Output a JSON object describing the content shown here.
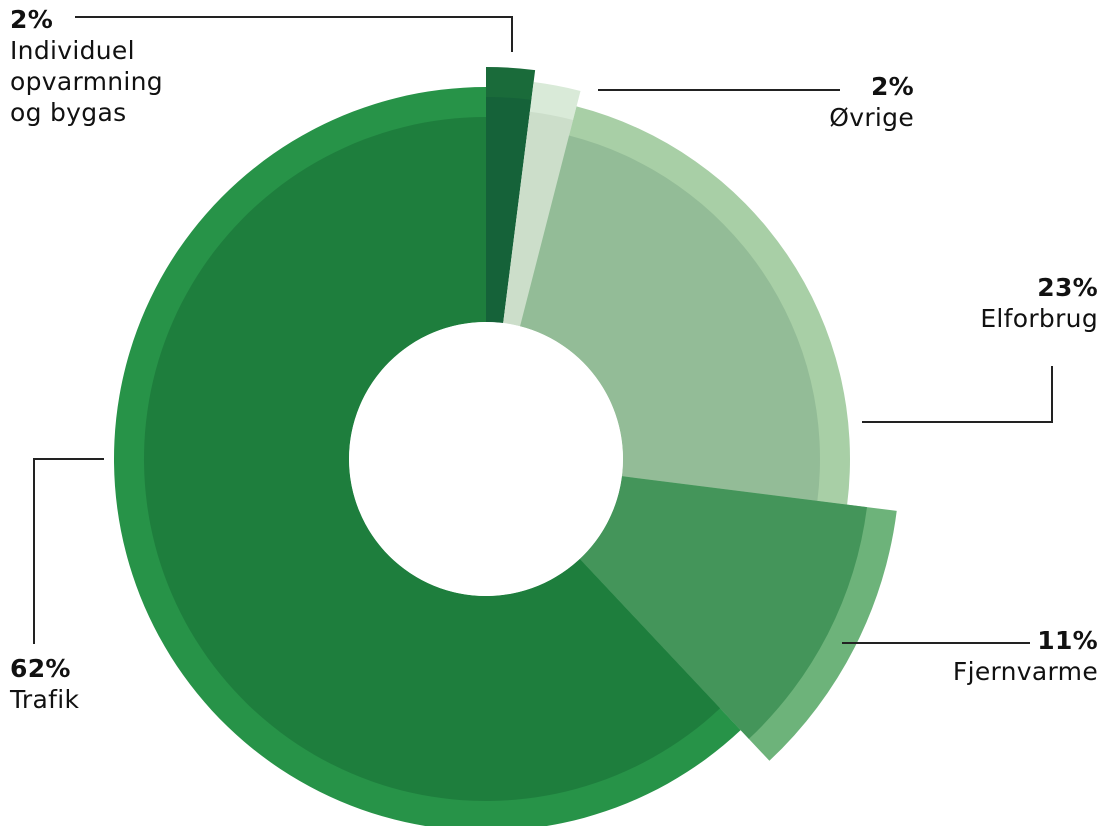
{
  "chart_data": {
    "type": "pie",
    "variant": "donut",
    "title": "",
    "series": [
      {
        "values": [
          2,
          2,
          23,
          11,
          62
        ]
      }
    ],
    "categories": [
      "Individuel opvarmning og bygas",
      "Øvrige",
      "Elforbrug",
      "Fjernvarme",
      "Trafik"
    ],
    "slices": [
      {
        "label": "Individuel\nopvarmning\nog bygas",
        "value_label": "2%",
        "value": 2,
        "color": "#1a6b3a"
      },
      {
        "label": "Øvrige",
        "value_label": "2%",
        "value": 2,
        "color": "#d9ead8"
      },
      {
        "label": "Elforbrug",
        "value_label": "23%",
        "value": 23,
        "color": "#a8cfa6"
      },
      {
        "label": "Fjernvarme",
        "value_label": "11%",
        "value": 11,
        "color": "#6db37a"
      },
      {
        "label": "Trafik",
        "value_label": "62%",
        "value": 62,
        "color": "#279348"
      }
    ],
    "legend": "none (callout labels)"
  }
}
